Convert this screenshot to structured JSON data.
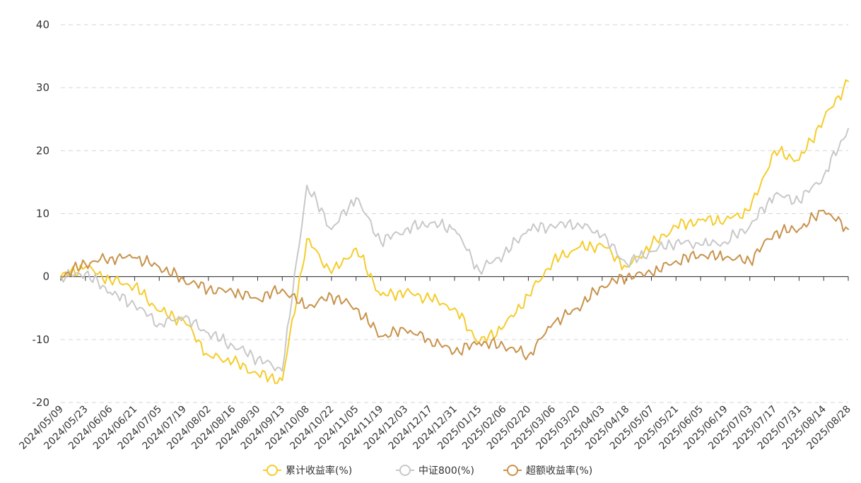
{
  "chart_data": {
    "type": "line",
    "title": "",
    "xlabel": "",
    "ylabel": "",
    "ylim": [
      -20,
      40
    ],
    "yticks": [
      -20,
      -10,
      0,
      10,
      20,
      30,
      40
    ],
    "grid": true,
    "legend_position": "bottom",
    "categories": [
      "2024/05/09",
      "2024/05/23",
      "2024/06/06",
      "2024/06/21",
      "2024/07/05",
      "2024/07/19",
      "2024/08/02",
      "2024/08/16",
      "2024/08/30",
      "2024/09/13",
      "2024/10/08",
      "2024/10/22",
      "2024/11/05",
      "2024/11/19",
      "2024/12/03",
      "2024/12/17",
      "2024/12/31",
      "2025/01/15",
      "2025/02/06",
      "2025/02/20",
      "2025/03/06",
      "2025/03/20",
      "2025/04/03",
      "2025/04/18",
      "2025/05/07",
      "2025/05/21",
      "2025/06/05",
      "2025/06/19",
      "2025/07/03",
      "2025/07/17",
      "2025/07/31",
      "2025/08/14",
      "2025/08/28"
    ],
    "series": [
      {
        "name": "累计收益率(%)",
        "color": "#f5cc2a",
        "values": [
          0,
          1.5,
          -0.5,
          -1.5,
          -5.5,
          -7.0,
          -12.5,
          -13.5,
          -15.5,
          -16.5,
          6.0,
          0.5,
          4.5,
          -3.0,
          -2.5,
          -3.5,
          -5.0,
          -10.5,
          -8.0,
          -3.0,
          2.5,
          4.5,
          5.0,
          1.5,
          5.0,
          8.0,
          9.0,
          9.0,
          10.5,
          20.0,
          18.5,
          25.0,
          31.0
        ]
      },
      {
        "name": "中证800(%)",
        "color": "#c8c8c8",
        "values": [
          0,
          0.5,
          -2.5,
          -4.5,
          -7.5,
          -6.5,
          -9.0,
          -11.0,
          -13.0,
          -15.0,
          14.5,
          7.5,
          12.5,
          5.5,
          7.5,
          8.5,
          7.5,
          1.0,
          3.5,
          7.5,
          8.0,
          8.5,
          6.5,
          2.0,
          4.0,
          5.5,
          5.0,
          5.5,
          8.0,
          13.0,
          12.0,
          16.0,
          23.5
        ]
      },
      {
        "name": "超额收益率(%)",
        "color": "#c8924a",
        "values": [
          0,
          2.0,
          3.0,
          3.0,
          1.5,
          -0.5,
          -2.0,
          -2.5,
          -3.5,
          -2.0,
          -5.0,
          -3.0,
          -5.0,
          -9.5,
          -8.5,
          -10.0,
          -12.0,
          -10.5,
          -11.0,
          -12.5,
          -7.5,
          -5.0,
          -1.5,
          0.0,
          0.5,
          2.5,
          3.5,
          3.0,
          2.5,
          7.0,
          7.5,
          10.5,
          7.5
        ]
      }
    ]
  }
}
